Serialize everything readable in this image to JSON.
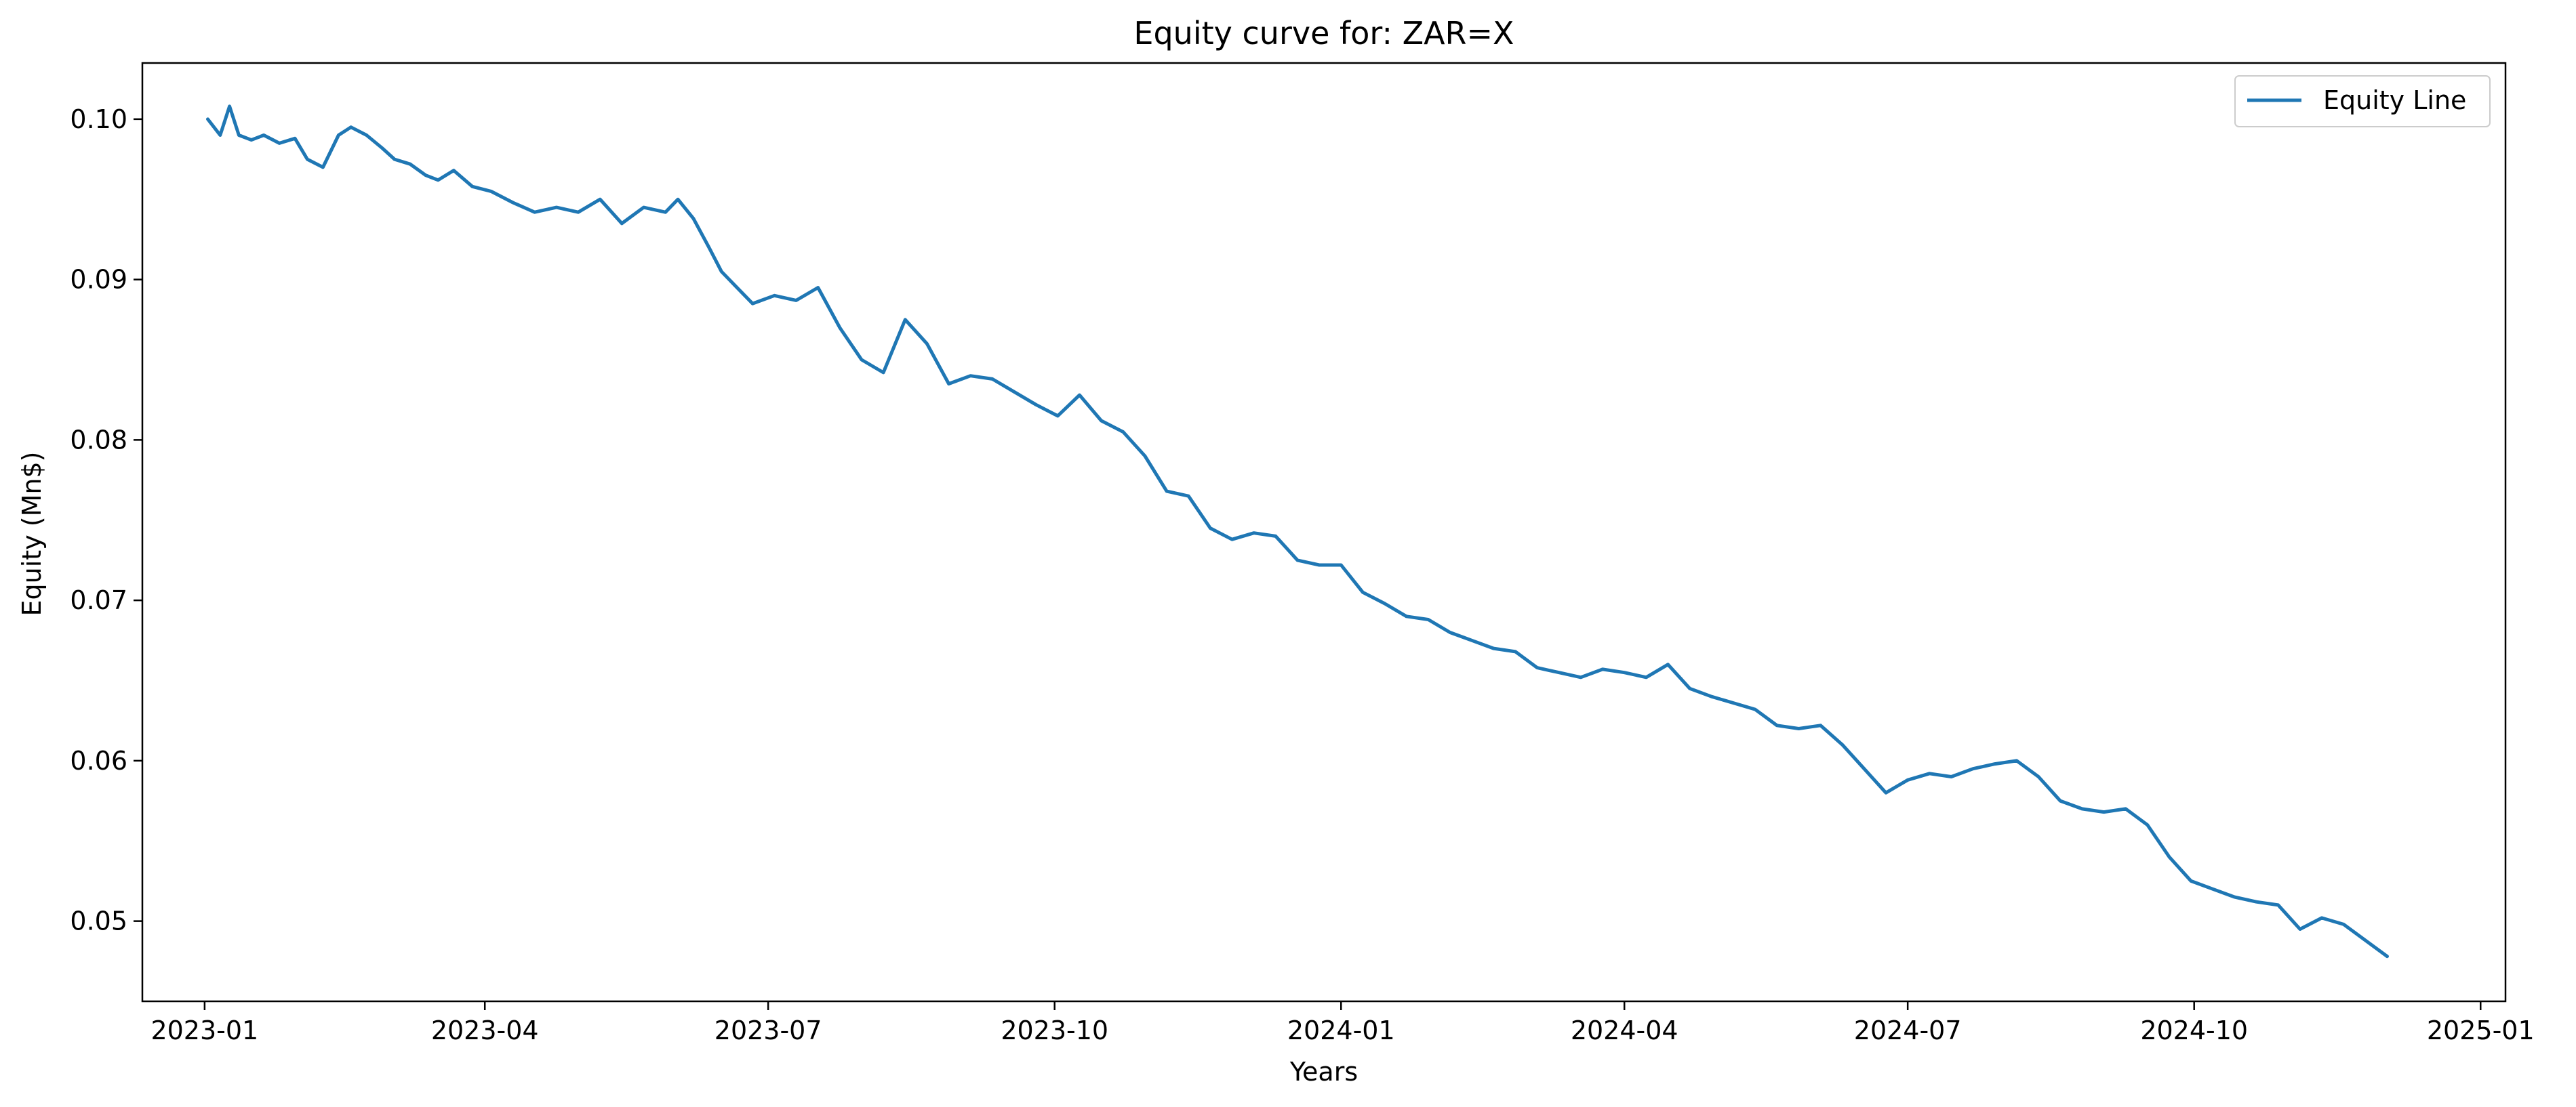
{
  "chart_data": {
    "type": "line",
    "title": "Equity curve for: ZAR=X",
    "xlabel": "Years",
    "ylabel": "Equity (Mn$)",
    "x_ticks": [
      "2023-01",
      "2023-04",
      "2023-07",
      "2023-10",
      "2024-01",
      "2024-04",
      "2024-07",
      "2024-10",
      "2025-01"
    ],
    "y_ticks": [
      "0.05",
      "0.06",
      "0.07",
      "0.08",
      "0.09",
      "0.10"
    ],
    "xlim": [
      "2022-12-12",
      "2025-01-09"
    ],
    "ylim": [
      0.045,
      0.1035
    ],
    "grid": false,
    "legend": {
      "position": "top-right",
      "entries": [
        "Equity Line"
      ]
    },
    "series": [
      {
        "name": "Equity Line",
        "color": "#1f77b4",
        "x": [
          "2023-01-02",
          "2023-01-06",
          "2023-01-09",
          "2023-01-12",
          "2023-01-16",
          "2023-01-20",
          "2023-01-25",
          "2023-01-30",
          "2023-02-03",
          "2023-02-08",
          "2023-02-13",
          "2023-02-17",
          "2023-02-22",
          "2023-02-27",
          "2023-03-03",
          "2023-03-08",
          "2023-03-13",
          "2023-03-17",
          "2023-03-22",
          "2023-03-28",
          "2023-04-03",
          "2023-04-10",
          "2023-04-17",
          "2023-04-24",
          "2023-05-01",
          "2023-05-08",
          "2023-05-15",
          "2023-05-22",
          "2023-05-29",
          "2023-06-02",
          "2023-06-07",
          "2023-06-12",
          "2023-06-16",
          "2023-06-21",
          "2023-06-26",
          "2023-07-03",
          "2023-07-10",
          "2023-07-17",
          "2023-07-24",
          "2023-07-31",
          "2023-08-07",
          "2023-08-14",
          "2023-08-21",
          "2023-08-28",
          "2023-09-04",
          "2023-09-11",
          "2023-09-18",
          "2023-09-25",
          "2023-10-02",
          "2023-10-09",
          "2023-10-16",
          "2023-10-23",
          "2023-10-30",
          "2023-11-06",
          "2023-11-13",
          "2023-11-20",
          "2023-11-27",
          "2023-12-04",
          "2023-12-11",
          "2023-12-18",
          "2023-12-25",
          "2024-01-01",
          "2024-01-08",
          "2024-01-15",
          "2024-01-22",
          "2024-01-29",
          "2024-02-05",
          "2024-02-12",
          "2024-02-19",
          "2024-02-26",
          "2024-03-04",
          "2024-03-11",
          "2024-03-18",
          "2024-03-25",
          "2024-04-01",
          "2024-04-08",
          "2024-04-15",
          "2024-04-22",
          "2024-04-29",
          "2024-05-06",
          "2024-05-13",
          "2024-05-20",
          "2024-05-27",
          "2024-06-03",
          "2024-06-10",
          "2024-06-17",
          "2024-06-24",
          "2024-07-01",
          "2024-07-08",
          "2024-07-15",
          "2024-07-22",
          "2024-07-29",
          "2024-08-05",
          "2024-08-12",
          "2024-08-19",
          "2024-08-26",
          "2024-09-02",
          "2024-09-09",
          "2024-09-16",
          "2024-09-23",
          "2024-09-30",
          "2024-10-07",
          "2024-10-14",
          "2024-10-21",
          "2024-10-28",
          "2024-11-04",
          "2024-11-11",
          "2024-11-18",
          "2024-11-25",
          "2024-12-02"
        ],
        "y": [
          0.1,
          0.099,
          0.1008,
          0.099,
          0.0987,
          0.099,
          0.0985,
          0.0988,
          0.0975,
          0.097,
          0.099,
          0.0995,
          0.099,
          0.0982,
          0.0975,
          0.0972,
          0.0965,
          0.0962,
          0.0968,
          0.0958,
          0.0955,
          0.0948,
          0.0942,
          0.0945,
          0.0942,
          0.095,
          0.0935,
          0.0945,
          0.0942,
          0.095,
          0.0938,
          0.092,
          0.0905,
          0.0895,
          0.0885,
          0.089,
          0.0887,
          0.0895,
          0.087,
          0.085,
          0.0842,
          0.0875,
          0.086,
          0.0835,
          0.084,
          0.0838,
          0.083,
          0.0822,
          0.0815,
          0.0828,
          0.0812,
          0.0805,
          0.079,
          0.0768,
          0.0765,
          0.0745,
          0.0738,
          0.0742,
          0.074,
          0.0725,
          0.0722,
          0.0722,
          0.0705,
          0.0698,
          0.069,
          0.0688,
          0.068,
          0.0675,
          0.067,
          0.0668,
          0.0658,
          0.0655,
          0.0652,
          0.0657,
          0.0655,
          0.0652,
          0.066,
          0.0645,
          0.064,
          0.0636,
          0.0632,
          0.0622,
          0.062,
          0.0622,
          0.061,
          0.0595,
          0.058,
          0.0588,
          0.0592,
          0.059,
          0.0595,
          0.0598,
          0.06,
          0.059,
          0.0575,
          0.057,
          0.0568,
          0.057,
          0.056,
          0.054,
          0.0525,
          0.052,
          0.0515,
          0.0512,
          0.051,
          0.0495,
          0.0502,
          0.0498,
          0.0488,
          0.0478
        ]
      }
    ]
  }
}
